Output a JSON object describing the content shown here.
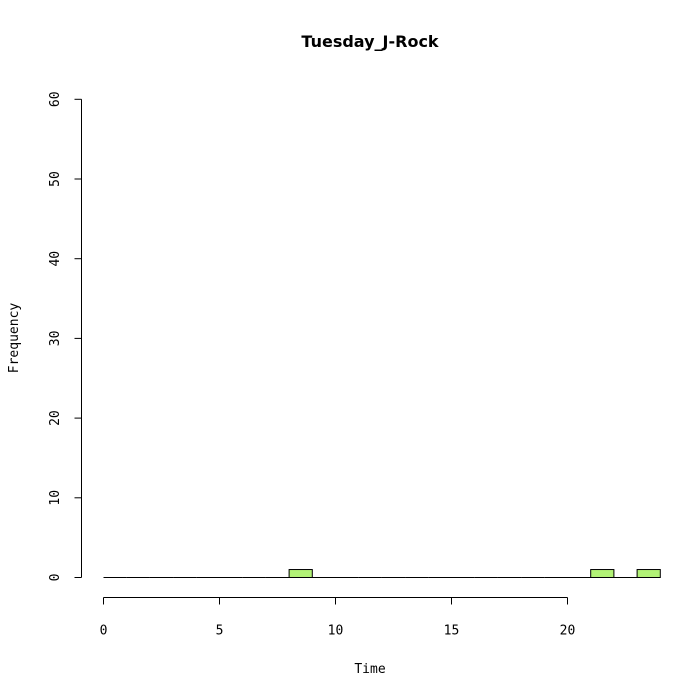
{
  "chart_data": {
    "type": "bar",
    "title": "Tuesday_J-Rock",
    "xlabel": "Time",
    "ylabel": "Frequency",
    "xlim": [
      0,
      24
    ],
    "ylim": [
      0,
      60
    ],
    "x_ticks": [
      0,
      5,
      10,
      15,
      20
    ],
    "y_ticks": [
      0,
      10,
      20,
      30,
      40,
      50,
      60
    ],
    "bins": [
      {
        "start": 0,
        "end": 1,
        "count": 0
      },
      {
        "start": 1,
        "end": 2,
        "count": 0
      },
      {
        "start": 2,
        "end": 3,
        "count": 0
      },
      {
        "start": 3,
        "end": 4,
        "count": 0
      },
      {
        "start": 4,
        "end": 5,
        "count": 0
      },
      {
        "start": 5,
        "end": 6,
        "count": 0
      },
      {
        "start": 6,
        "end": 7,
        "count": 0
      },
      {
        "start": 7,
        "end": 8,
        "count": 0
      },
      {
        "start": 8,
        "end": 9,
        "count": 1
      },
      {
        "start": 9,
        "end": 10,
        "count": 0
      },
      {
        "start": 10,
        "end": 11,
        "count": 0
      },
      {
        "start": 11,
        "end": 12,
        "count": 0
      },
      {
        "start": 12,
        "end": 13,
        "count": 0
      },
      {
        "start": 13,
        "end": 14,
        "count": 0
      },
      {
        "start": 14,
        "end": 15,
        "count": 0
      },
      {
        "start": 15,
        "end": 16,
        "count": 0
      },
      {
        "start": 16,
        "end": 17,
        "count": 0
      },
      {
        "start": 17,
        "end": 18,
        "count": 0
      },
      {
        "start": 18,
        "end": 19,
        "count": 0
      },
      {
        "start": 19,
        "end": 20,
        "count": 0
      },
      {
        "start": 20,
        "end": 21,
        "count": 0
      },
      {
        "start": 21,
        "end": 22,
        "count": 1
      },
      {
        "start": 22,
        "end": 23,
        "count": 0
      },
      {
        "start": 23,
        "end": 24,
        "count": 1
      }
    ],
    "bar_color": "#b2f276",
    "grid": false,
    "legend": "none"
  }
}
